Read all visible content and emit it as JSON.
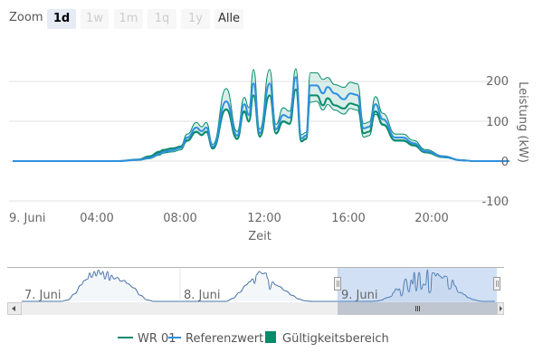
{
  "range_selector": {
    "label": "Zoom",
    "buttons": [
      {
        "label": "1d",
        "selected": true
      },
      {
        "label": "1w",
        "selected": false
      },
      {
        "label": "1m",
        "selected": false
      },
      {
        "label": "1q",
        "selected": false
      },
      {
        "label": "1y",
        "selected": false
      },
      {
        "label": "Alle",
        "selected": false
      }
    ]
  },
  "chart_data": {
    "type": "line",
    "title": "",
    "xlabel": "Zeit",
    "ylabel": "Leistung (kW)",
    "ylim": [
      -100,
      250
    ],
    "yticks": [
      "200",
      "100",
      "0",
      "-100"
    ],
    "xticks": [
      "9. Juni",
      "04:00",
      "08:00",
      "12:00",
      "16:00",
      "20:00"
    ],
    "x_unit": "hours since 9. Juni 00:00",
    "x": [
      0,
      5,
      6,
      6.5,
      7,
      7.16,
      7.6,
      8,
      8.32,
      8.75,
      9.0,
      9.22,
      9.53,
      10.17,
      10.69,
      11.03,
      11.25,
      11.47,
      11.77,
      12.24,
      12.54,
      12.89,
      13.19,
      13.49,
      13.75,
      13.97,
      14.18,
      14.48,
      14.78,
      15.0,
      15.34,
      15.78,
      16.08,
      16.42,
      16.72,
      16.98,
      17.28,
      17.63,
      18.23,
      18.58,
      19.09,
      19.66,
      20.52,
      21.38,
      22.0,
      23.7
    ],
    "series": [
      {
        "name": "Referenzwert",
        "color": "#2f8fe0",
        "values": [
          0,
          0,
          3,
          8,
          18,
          23,
          27,
          33,
          59,
          84,
          75,
          84,
          36,
          150,
          64,
          143,
          116,
          195,
          70,
          195,
          80,
          116,
          109,
          211,
          57,
          64,
          190,
          190,
          170,
          186,
          170,
          155,
          170,
          166,
          82,
          86,
          143,
          105,
          59,
          59,
          45,
          25,
          11,
          2,
          0,
          0
        ]
      },
      {
        "name": "WR 01",
        "color": "#0b8a6e",
        "values": [
          0,
          0,
          4,
          12,
          24,
          28,
          32,
          36,
          52,
          74,
          66,
          74,
          32,
          130,
          56,
          125,
          100,
          165,
          62,
          165,
          70,
          100,
          94,
          180,
          50,
          56,
          165,
          165,
          140,
          158,
          140,
          132,
          145,
          140,
          70,
          74,
          125,
          92,
          52,
          52,
          40,
          22,
          10,
          2,
          0,
          0
        ]
      }
    ],
    "range": {
      "name": "Gültigkeitsbereich",
      "color": "#058c6a",
      "low": [
        0,
        0,
        2,
        6,
        15,
        20,
        23,
        28,
        50,
        72,
        64,
        72,
        30,
        128,
        54,
        122,
        98,
        166,
        60,
        166,
        68,
        98,
        92,
        180,
        48,
        54,
        148,
        150,
        128,
        142,
        128,
        118,
        132,
        128,
        60,
        64,
        118,
        90,
        50,
        50,
        38,
        21,
        9,
        1,
        0,
        0
      ],
      "high": [
        0,
        0,
        4,
        10,
        21,
        26,
        31,
        38,
        68,
        97,
        86,
        97,
        42,
        182,
        74,
        160,
        134,
        230,
        80,
        230,
        92,
        134,
        125,
        232,
        66,
        72,
        222,
        222,
        205,
        210,
        192,
        185,
        198,
        194,
        94,
        98,
        162,
        120,
        68,
        68,
        52,
        29,
        13,
        2,
        0,
        0
      ]
    },
    "navigator": {
      "labels": [
        "7. Juni",
        "8. Juni",
        "9. Juni"
      ],
      "days": [
        {
          "x": [
            0,
            6,
            7,
            8,
            9,
            9.5,
            10,
            10.3,
            10.6,
            11,
            11.3,
            11.6,
            12,
            12.3,
            12.6,
            13,
            13.3,
            13.6,
            14,
            14.5,
            15,
            15.5,
            16,
            17,
            18,
            19,
            20,
            24
          ],
          "values": [
            0,
            0,
            10,
            50,
            110,
            140,
            150,
            190,
            160,
            200,
            170,
            210,
            180,
            200,
            150,
            200,
            140,
            175,
            150,
            160,
            135,
            140,
            120,
            90,
            40,
            10,
            0,
            0
          ]
        },
        {
          "x": [
            0,
            7,
            8,
            9,
            10,
            10.5,
            11,
            11.3,
            11.6,
            12,
            12.5,
            13,
            13.3,
            13.6,
            14,
            14.5,
            15,
            16,
            17,
            18,
            19,
            20,
            24
          ],
          "values": [
            0,
            0,
            20,
            60,
            110,
            130,
            150,
            120,
            180,
            200,
            185,
            190,
            150,
            80,
            130,
            110,
            100,
            70,
            40,
            15,
            3,
            0,
            0
          ]
        }
      ],
      "selected_day": "9. Juni"
    },
    "legend": {
      "position": "bottom-center",
      "items": [
        "WR 01",
        "Referenzwert",
        "Gültigkeitsbereich"
      ]
    },
    "grid": true
  }
}
